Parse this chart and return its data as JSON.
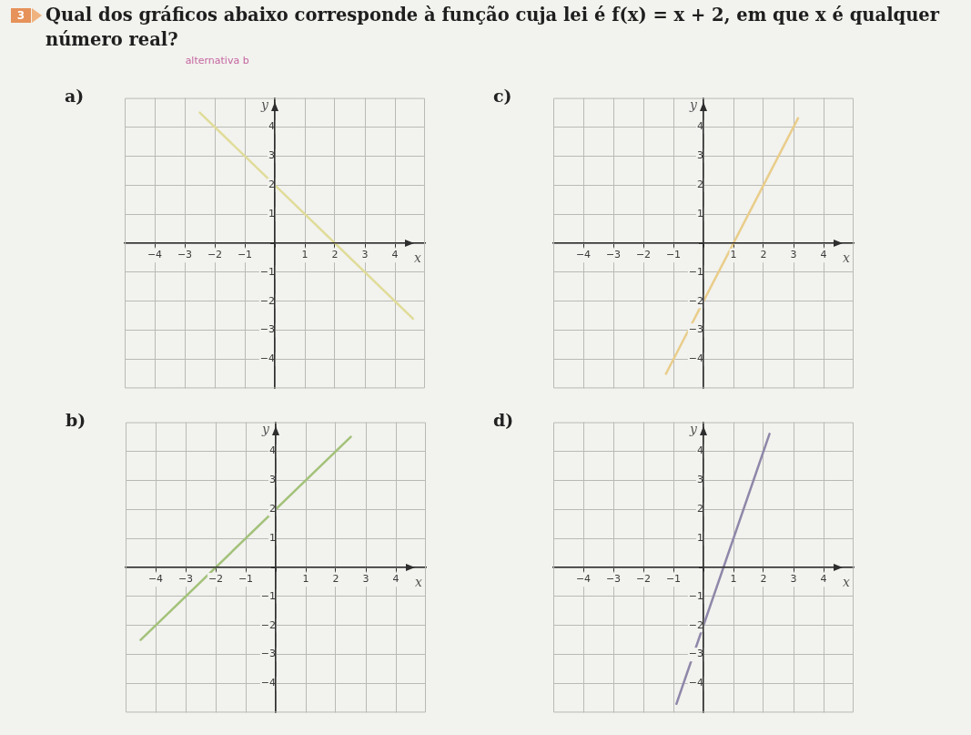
{
  "chart_data": [
    {
      "type": "other",
      "title": "Qual dos gráficos abaixo corresponde à função cuja lei é f(x) = x + 2, em que x é qualquer número real?",
      "annotations": [
        "3",
        "alternativa b"
      ]
    },
    {
      "type": "line",
      "title": "a)",
      "x": [
        -2.5,
        4.6
      ],
      "values": [
        4.5,
        -2.6
      ],
      "color": "#e0dc98",
      "xlabel": "x",
      "ylabel": "y",
      "xlim": [
        -5,
        5
      ],
      "ylim": [
        -5,
        5
      ],
      "xticks": [
        {
          "value": -4,
          "label": "−4"
        },
        {
          "value": -3,
          "label": "−3"
        },
        {
          "value": -2,
          "label": "−2"
        },
        {
          "value": -1,
          "label": "−1"
        },
        {
          "value": 0,
          "label": null
        },
        1,
        2,
        3,
        4
      ],
      "yticks": [
        {
          "value": -4,
          "label": "−4"
        },
        {
          "value": -3,
          "label": "−3"
        },
        {
          "value": -2,
          "label": "−2"
        },
        {
          "value": -1,
          "label": "−1"
        },
        {
          "value": 0,
          "label": null
        },
        1,
        2,
        3,
        4
      ],
      "grid": true,
      "marker": "none"
    },
    {
      "type": "line",
      "title": "c)",
      "x": [
        -1.25,
        3.15
      ],
      "values": [
        -4.5,
        4.3
      ],
      "color": "#e9cd8a",
      "xlabel": "x",
      "ylabel": "y",
      "xlim": [
        -5,
        5
      ],
      "ylim": [
        -5,
        5
      ],
      "xticks": [
        {
          "value": -4,
          "label": "−4"
        },
        {
          "value": -3,
          "label": "−3"
        },
        {
          "value": -2,
          "label": "−2"
        },
        {
          "value": -1,
          "label": "−1"
        },
        {
          "value": 0,
          "label": null
        },
        1,
        2,
        3,
        4
      ],
      "yticks": [
        {
          "value": -4,
          "label": "−4"
        },
        {
          "value": -3,
          "label": "−3"
        },
        {
          "value": -2,
          "label": "−2"
        },
        {
          "value": -1,
          "label": "−1"
        },
        {
          "value": 0,
          "label": null
        },
        1,
        2,
        3,
        4
      ],
      "grid": true,
      "marker": "none"
    },
    {
      "type": "line",
      "title": "b)",
      "x": [
        -4.5,
        2.5
      ],
      "values": [
        -2.5,
        4.5
      ],
      "color": "#a3c27a",
      "xlabel": "x",
      "ylabel": "y",
      "xlim": [
        -5,
        5
      ],
      "ylim": [
        -5,
        5
      ],
      "xticks": [
        {
          "value": -4,
          "label": "−4"
        },
        {
          "value": -3,
          "label": "−3"
        },
        {
          "value": -2,
          "label": "−2"
        },
        {
          "value": -1,
          "label": "−1"
        },
        {
          "value": 0,
          "label": null
        },
        1,
        2,
        3,
        4
      ],
      "yticks": [
        {
          "value": -4,
          "label": "−4"
        },
        {
          "value": -3,
          "label": "−3"
        },
        {
          "value": -2,
          "label": "−2"
        },
        {
          "value": -1,
          "label": "−1"
        },
        {
          "value": 0,
          "label": null
        },
        1,
        2,
        3,
        4
      ],
      "grid": true,
      "marker": "none"
    },
    {
      "type": "line",
      "title": "d)",
      "x": [
        -0.9,
        2.2
      ],
      "values": [
        -4.7,
        4.6
      ],
      "color": "#8f87a9",
      "xlabel": "x",
      "ylabel": "y",
      "xlim": [
        -5,
        5
      ],
      "ylim": [
        -5,
        5
      ],
      "xticks": [
        {
          "value": -4,
          "label": "−4"
        },
        {
          "value": -3,
          "label": "−3"
        },
        {
          "value": -2,
          "label": "−2"
        },
        {
          "value": -1,
          "label": "−1"
        },
        {
          "value": 0,
          "label": null
        },
        1,
        2,
        3,
        4
      ],
      "yticks": [
        {
          "value": -4,
          "label": "−4"
        },
        {
          "value": -3,
          "label": "−3"
        },
        {
          "value": -2,
          "label": "−2"
        },
        {
          "value": -1,
          "label": "−1"
        },
        {
          "value": 0,
          "label": null
        },
        1,
        2,
        3,
        4
      ],
      "grid": true,
      "marker": "none"
    }
  ]
}
